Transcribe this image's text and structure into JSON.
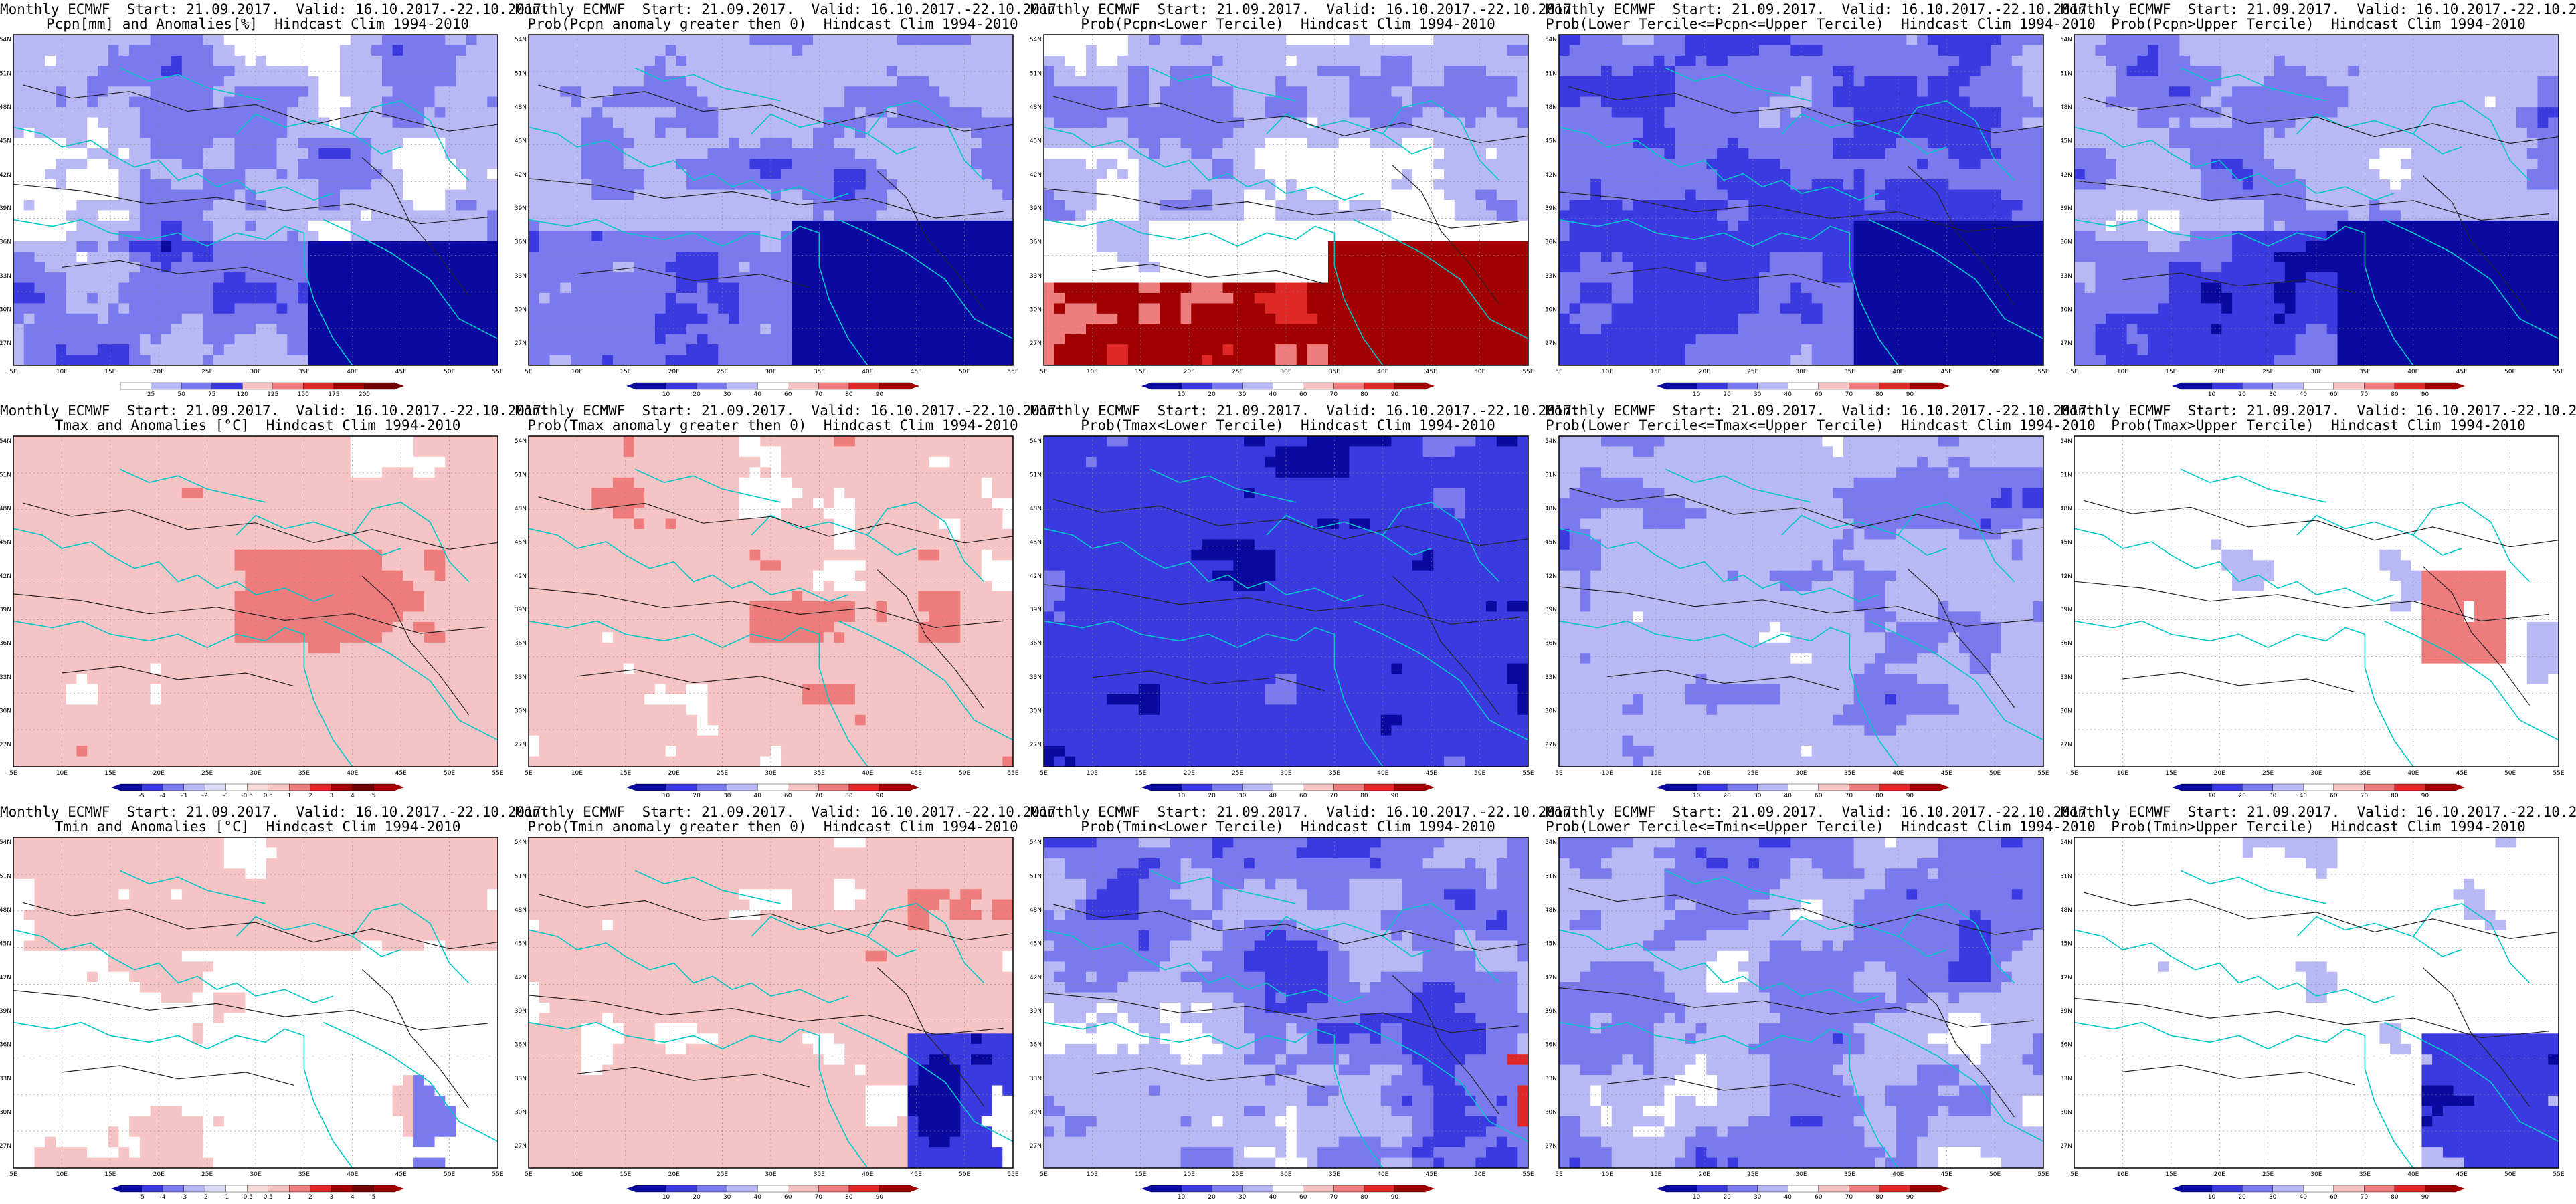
{
  "header": {
    "title_prefix": "Monthly ECMWF",
    "start": "Start: 21.09.2017.",
    "valid": "Valid: 16.10.2017.-22.10.2017.",
    "clim": "Hindcast Clim 1994-2010"
  },
  "axes": {
    "lat_labels": [
      "54N",
      "51N",
      "48N",
      "45N",
      "42N",
      "39N",
      "36N",
      "33N",
      "30N",
      "27N"
    ],
    "lon_labels": [
      "5E",
      "10E",
      "15E",
      "20E",
      "25E",
      "30E",
      "35E",
      "40E",
      "45E",
      "50E",
      "55E"
    ]
  },
  "colorbars": {
    "pcpn_anom": [
      "25",
      "50",
      "75",
      "120",
      "125",
      "150",
      "175",
      "200"
    ],
    "temp_anom": [
      "-5",
      "-4",
      "-3",
      "-2",
      "-1",
      "-0.5",
      "0.5",
      "1",
      "2",
      "3",
      "4",
      "5"
    ],
    "prob": [
      "10",
      "20",
      "30",
      "40",
      "60",
      "70",
      "80",
      "90"
    ]
  },
  "colors": {
    "deep_blue": "#0a0aa0",
    "blue": "#3a3ae0",
    "mid_blue": "#7a7aee",
    "light_blue": "#b8b8f4",
    "white": "#ffffff",
    "light_red": "#f6c4c4",
    "mid_red": "#ee7c7c",
    "red": "#e02828",
    "deep_red": "#a00000",
    "coast": "#00c8c8",
    "contour": "#222222"
  },
  "panels": [
    {
      "row": 0,
      "col": 0,
      "line2": "Pcpn[mm] and Anomalies[%]",
      "colorbar": "pcpn_anom",
      "style": "pcpn_anom"
    },
    {
      "row": 0,
      "col": 1,
      "line2": "Prob(Pcpn anomaly greater then 0)",
      "colorbar": "prob",
      "style": "pcpn_pos"
    },
    {
      "row": 0,
      "col": 2,
      "line2": "Prob(Pcpn<Lower Tercile)",
      "colorbar": "prob",
      "style": "pcpn_low"
    },
    {
      "row": 0,
      "col": 3,
      "line2": "Prob(Lower Tercile<=Pcpn<=Upper Tercile)",
      "colorbar": "prob",
      "style": "pcpn_mid"
    },
    {
      "row": 0,
      "col": 4,
      "line2": "Prob(Pcpn>Upper Tercile)",
      "colorbar": "prob",
      "style": "pcpn_up"
    },
    {
      "row": 1,
      "col": 0,
      "line2": "Tmax and Anomalies [°C]",
      "colorbar": "temp_anom",
      "style": "temp_anom"
    },
    {
      "row": 1,
      "col": 1,
      "line2": "Prob(Tmax anomaly greater then 0)",
      "colorbar": "prob",
      "style": "temp_pos"
    },
    {
      "row": 1,
      "col": 2,
      "line2": "Prob(Tmax<Lower Tercile)",
      "colorbar": "prob",
      "style": "temp_low"
    },
    {
      "row": 1,
      "col": 3,
      "line2": "Prob(Lower Tercile<=Tmax<=Upper Tercile)",
      "colorbar": "prob",
      "style": "temp_mid"
    },
    {
      "row": 1,
      "col": 4,
      "line2": "Prob(Tmax>Upper Tercile)",
      "colorbar": "prob",
      "style": "temp_up"
    },
    {
      "row": 2,
      "col": 0,
      "line2": "Tmin and Anomalies [°C]",
      "colorbar": "temp_anom",
      "style": "tmin_anom"
    },
    {
      "row": 2,
      "col": 1,
      "line2": "Prob(Tmin anomaly greater then 0)",
      "colorbar": "prob",
      "style": "tmin_pos"
    },
    {
      "row": 2,
      "col": 2,
      "line2": "Prob(Tmin<Lower Tercile)",
      "colorbar": "prob",
      "style": "tmin_low"
    },
    {
      "row": 2,
      "col": 3,
      "line2": "Prob(Lower Tercile<=Tmin<=Upper Tercile)",
      "colorbar": "prob",
      "style": "tmin_mid"
    },
    {
      "row": 2,
      "col": 4,
      "line2": "Prob(Tmin>Upper Tercile)",
      "colorbar": "prob",
      "style": "tmin_up"
    }
  ]
}
